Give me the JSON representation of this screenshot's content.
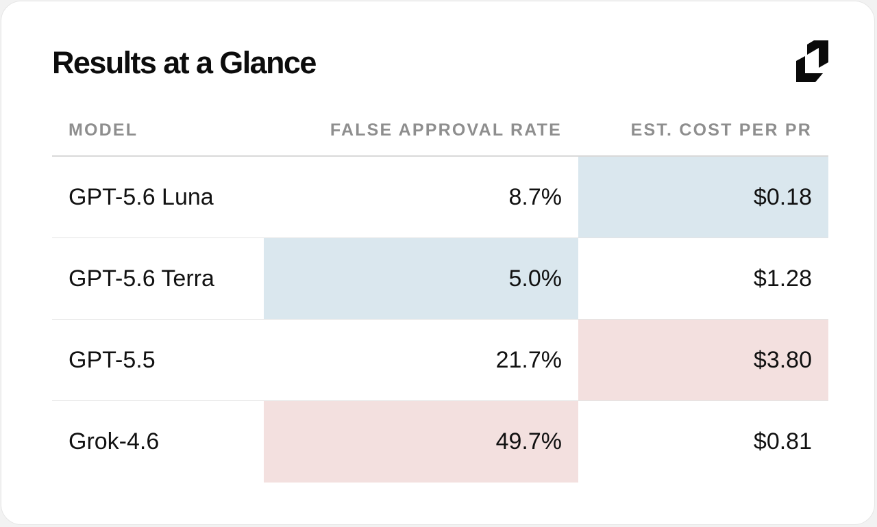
{
  "title": "Results at a Glance",
  "logo_icon": "brand-logo-icon",
  "colors": {
    "best_highlight": "#dae7ee",
    "worst_highlight": "#f3e0df",
    "header_text": "#8e8e8e"
  },
  "table": {
    "headers": {
      "model": "MODEL",
      "false_approval_rate": "FALSE APPROVAL RATE",
      "est_cost": "EST. COST PER PR"
    },
    "rows": [
      {
        "model": "GPT-5.6 Luna",
        "false_approval_rate": "8.7%",
        "est_cost": "$0.18",
        "far_highlight": "none",
        "cost_highlight": "best"
      },
      {
        "model": "GPT-5.6 Terra",
        "false_approval_rate": "5.0%",
        "est_cost": "$1.28",
        "far_highlight": "best",
        "cost_highlight": "none"
      },
      {
        "model": "GPT-5.5",
        "false_approval_rate": "21.7%",
        "est_cost": "$3.80",
        "far_highlight": "none",
        "cost_highlight": "worst"
      },
      {
        "model": "Grok-4.6",
        "false_approval_rate": "49.7%",
        "est_cost": "$0.81",
        "far_highlight": "worst",
        "cost_highlight": "none"
      }
    ]
  }
}
